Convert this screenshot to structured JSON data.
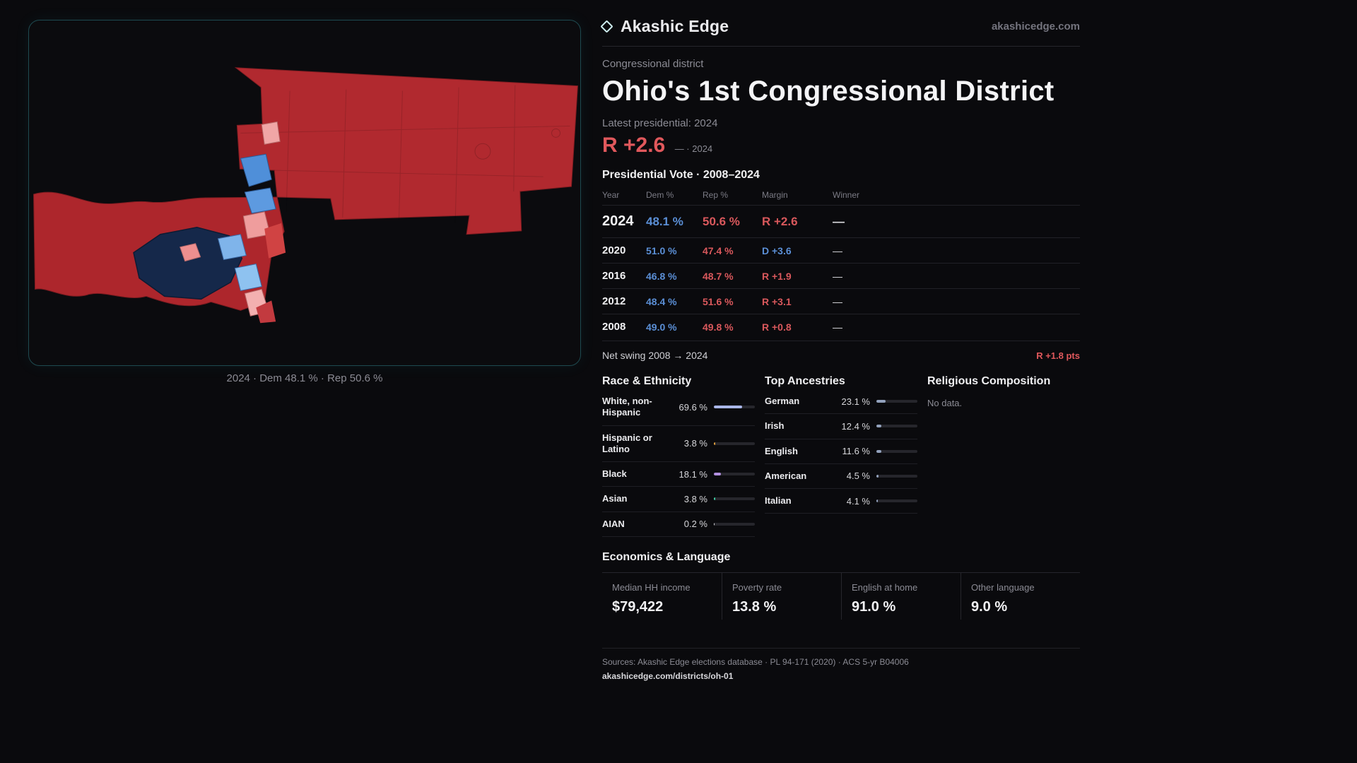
{
  "brand": {
    "name": "Akashic Edge",
    "domain": "akashicedge.com"
  },
  "map": {
    "caption": "2024 · Dem 48.1 % · Rep 50.6 %",
    "colors": {
      "rep": "#b1292f",
      "dem_dark": "#15284a",
      "dem_mid": "#4f8fd9",
      "dem_light": "#8ec2f0",
      "pink": "#f0a6a6"
    }
  },
  "header": {
    "kicker": "Congressional district",
    "title": "Ohio's 1st Congressional District",
    "latest_label": "Latest presidential: 2024",
    "margin_value": "R +2.6",
    "margin_note": "— · 2024"
  },
  "vote_table": {
    "title": "Presidential Vote · 2008–2024",
    "columns": [
      "Year",
      "Dem %",
      "Rep %",
      "Margin",
      "Winner"
    ],
    "rows": [
      {
        "year": "2024",
        "dem": "48.1 %",
        "rep": "50.6 %",
        "margin": "R +2.6",
        "party": "R",
        "winner": "—"
      },
      {
        "year": "2020",
        "dem": "51.0 %",
        "rep": "47.4 %",
        "margin": "D +3.6",
        "party": "D",
        "winner": "—"
      },
      {
        "year": "2016",
        "dem": "46.8 %",
        "rep": "48.7 %",
        "margin": "R +1.9",
        "party": "R",
        "winner": "—"
      },
      {
        "year": "2012",
        "dem": "48.4 %",
        "rep": "51.6 %",
        "margin": "R +3.1",
        "party": "R",
        "winner": "—"
      },
      {
        "year": "2008",
        "dem": "49.0 %",
        "rep": "49.8 %",
        "margin": "R +0.8",
        "party": "R",
        "winner": "—"
      }
    ],
    "net_swing_label": "Net swing 2008 → 2024",
    "net_swing_value": "R +1.8 pts"
  },
  "race": {
    "title": "Race & Ethnicity",
    "rows": [
      {
        "label": "White, non-Hispanic",
        "value": "69.6 %",
        "pct": 69.6,
        "color": "#a9b6e8"
      },
      {
        "label": "Hispanic or Latino",
        "value": "3.8 %",
        "pct": 3.8,
        "color": "#e6a23c"
      },
      {
        "label": "Black",
        "value": "18.1 %",
        "pct": 18.1,
        "color": "#b28fe0"
      },
      {
        "label": "Asian",
        "value": "3.8 %",
        "pct": 3.8,
        "color": "#3fd0a4"
      },
      {
        "label": "AIAN",
        "value": "0.2 %",
        "pct": 0.2,
        "color": "#d8d8dc"
      }
    ]
  },
  "ancestries": {
    "title": "Top Ancestries",
    "bar_color": "#93a2bd",
    "rows": [
      {
        "label": "German",
        "value": "23.1 %",
        "pct": 23.1
      },
      {
        "label": "Irish",
        "value": "12.4 %",
        "pct": 12.4
      },
      {
        "label": "English",
        "value": "11.6 %",
        "pct": 11.6
      },
      {
        "label": "American",
        "value": "4.5 %",
        "pct": 4.5
      },
      {
        "label": "Italian",
        "value": "4.1 %",
        "pct": 4.1
      }
    ]
  },
  "religion": {
    "title": "Religious Composition",
    "empty": "No data."
  },
  "economics": {
    "title": "Economics & Language",
    "stats": [
      {
        "label": "Median HH income",
        "value": "$79,422"
      },
      {
        "label": "Poverty rate",
        "value": "13.8 %"
      },
      {
        "label": "English at home",
        "value": "91.0 %"
      },
      {
        "label": "Other language",
        "value": "9.0 %"
      }
    ]
  },
  "footer": {
    "sources": "Sources: Akashic Edge elections database · PL 94-171 (2020) · ACS 5-yr B04006",
    "permalink": "akashicedge.com/districts/oh-01"
  },
  "accents": {
    "rep": "#e0585c",
    "dem": "#5b8fd6"
  }
}
